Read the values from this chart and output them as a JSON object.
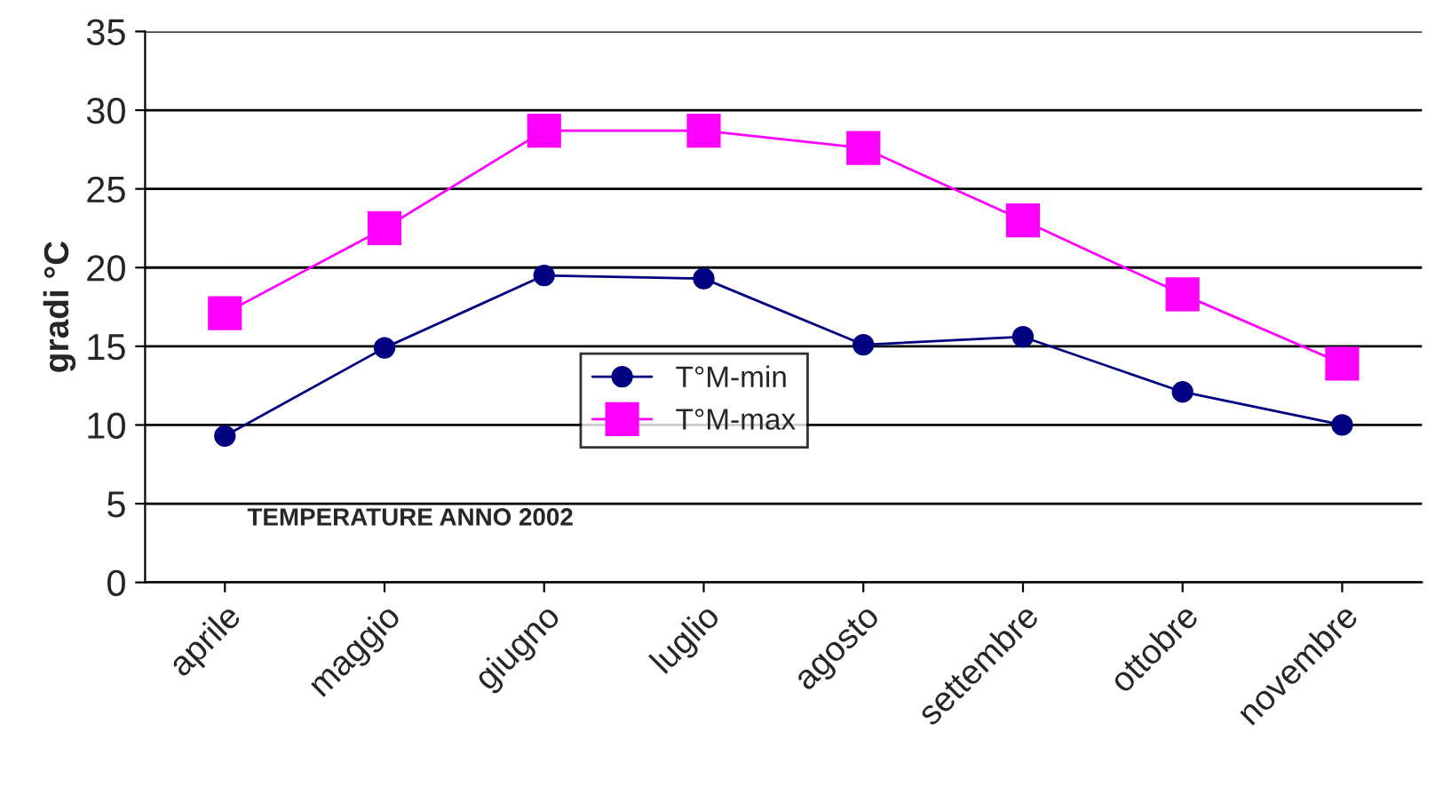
{
  "chart_data": {
    "type": "line",
    "ylabel": "gradi °C",
    "categories": [
      "aprile",
      "maggio",
      "giugno",
      "luglio",
      "agosto",
      "settembre",
      "ottobre",
      "novembre"
    ],
    "series": [
      {
        "name": "T°M-min",
        "color": "#000080",
        "marker": "circle",
        "values": [
          9.3,
          14.9,
          19.5,
          19.3,
          15.1,
          15.6,
          12.1,
          10.0
        ]
      },
      {
        "name": "T°M-max",
        "color": "#ff00ff",
        "marker": "square",
        "values": [
          17.1,
          22.5,
          28.7,
          28.7,
          27.6,
          23.0,
          18.3,
          13.9
        ]
      }
    ],
    "ylim": [
      0,
      35
    ],
    "yticks": [
      0,
      5,
      10,
      15,
      20,
      25,
      30,
      35
    ],
    "grid": "y",
    "legend": "center",
    "annotations": [
      "TEMPERATURE ANNO 2002"
    ]
  }
}
